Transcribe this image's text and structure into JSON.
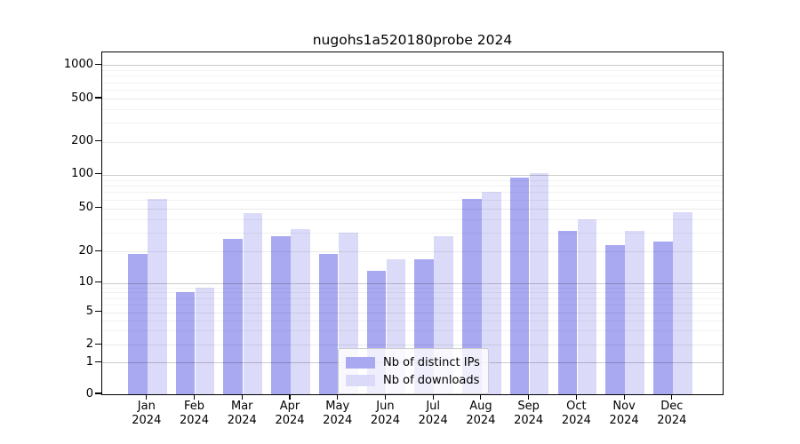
{
  "title": "nugohs1a520180probe 2024",
  "colors": {
    "distinct_ips_bar": "#a9a9f2",
    "downloads_bar": "#dbdbf9",
    "spine": "#000000"
  },
  "legend": {
    "items": [
      {
        "label": "Nb of distinct IPs",
        "swatch": "#a9a9f2"
      },
      {
        "label": "Nb of downloads",
        "swatch": "#dbdbf9"
      }
    ]
  },
  "y_axis": {
    "tick_labels": [
      "1000",
      "500",
      "200",
      "100",
      "50",
      "20",
      "10",
      "5",
      "2",
      "1",
      "0"
    ]
  },
  "x_axis": {
    "year_label": "2024",
    "month_labels": [
      "Jan",
      "Feb",
      "Mar",
      "Apr",
      "May",
      "Jun",
      "Jul",
      "Aug",
      "Sep",
      "Oct",
      "Nov",
      "Dec"
    ]
  },
  "chart_data": {
    "type": "bar",
    "title": "nugohs1a520180probe 2024",
    "categories": [
      "Jan 2024",
      "Feb 2024",
      "Mar 2024",
      "Apr 2024",
      "May 2024",
      "Jun 2024",
      "Jul 2024",
      "Aug 2024",
      "Sep 2024",
      "Oct 2024",
      "Nov 2024",
      "Dec 2024"
    ],
    "series": [
      {
        "name": "Nb of distinct IPs",
        "color": "#a9a9f2",
        "values": [
          19,
          8,
          26,
          28,
          19,
          13,
          17,
          61,
          95,
          31,
          23,
          25
        ]
      },
      {
        "name": "Nb of downloads",
        "color": "#dbdbf9",
        "values": [
          61,
          9,
          45,
          32,
          30,
          17,
          28,
          71,
          103,
          40,
          31,
          46
        ]
      }
    ],
    "yscale": "symlog",
    "yticks": [
      0,
      1,
      2,
      5,
      10,
      20,
      50,
      100,
      200,
      500,
      1000
    ],
    "minor_gridlines": [
      3,
      4,
      6,
      7,
      8,
      9,
      30,
      40,
      60,
      70,
      80,
      90,
      300,
      400,
      600,
      700,
      800,
      900
    ],
    "major_gridlines": [
      1,
      10,
      100,
      1000
    ],
    "ylim": [
      0,
      1300
    ],
    "grid": true,
    "legend_position": "lower center"
  }
}
